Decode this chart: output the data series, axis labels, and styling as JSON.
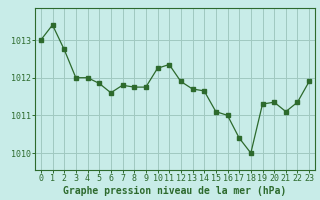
{
  "x": [
    0,
    1,
    2,
    3,
    4,
    5,
    6,
    7,
    8,
    9,
    10,
    11,
    12,
    13,
    14,
    15,
    16,
    17,
    18,
    19,
    20,
    21,
    22,
    23
  ],
  "y": [
    1013.0,
    1013.4,
    1012.75,
    1012.0,
    1012.0,
    1011.85,
    1011.6,
    1011.8,
    1011.75,
    1011.75,
    1012.25,
    1012.35,
    1011.9,
    1011.7,
    1011.65,
    1011.1,
    1011.0,
    1010.4,
    1010.0,
    1011.3,
    1011.35,
    1011.1,
    1011.35,
    1011.9
  ],
  "line_color": "#2d6a2d",
  "marker": "s",
  "marker_size": 2.2,
  "bg_color": "#c8ece8",
  "grid_color": "#a0c8c0",
  "axis_color": "#2d6a2d",
  "xlabel": "Graphe pression niveau de la mer (hPa)",
  "xlabel_fontsize": 7,
  "tick_fontsize": 6,
  "yticks": [
    1010,
    1011,
    1012,
    1013
  ],
  "ylim": [
    1009.55,
    1013.85
  ],
  "xlim": [
    -0.5,
    23.5
  ],
  "xticks": [
    0,
    1,
    2,
    3,
    4,
    5,
    6,
    7,
    8,
    9,
    10,
    11,
    12,
    13,
    14,
    15,
    16,
    17,
    18,
    19,
    20,
    21,
    22,
    23
  ]
}
